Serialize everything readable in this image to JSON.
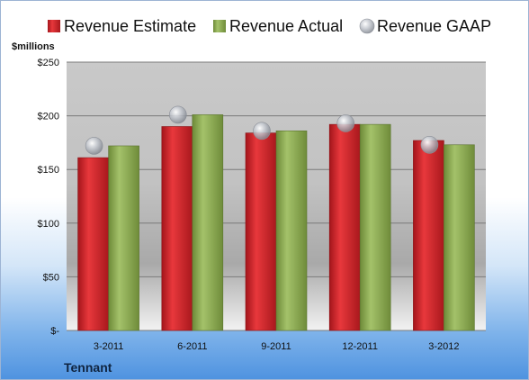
{
  "chart_data": {
    "type": "bar",
    "company": "Tennant",
    "unit_label": "$millions",
    "categories": [
      "3-2011",
      "6-2011",
      "9-2011",
      "12-2011",
      "3-2012"
    ],
    "series": [
      {
        "name": "Revenue Estimate",
        "values": [
          161,
          190,
          184,
          192,
          177
        ],
        "color": "#cc2024"
      },
      {
        "name": "Revenue Actual",
        "values": [
          172,
          201,
          186,
          192,
          173
        ],
        "color": "#8aa84f"
      }
    ],
    "markers": {
      "name": "Revenue GAAP",
      "values": [
        172,
        201,
        186,
        193,
        173
      ],
      "color": "#b8bcc4"
    },
    "y_ticks": [
      {
        "value": 0,
        "label": "$-"
      },
      {
        "value": 50,
        "label": "$50"
      },
      {
        "value": 100,
        "label": "$100"
      },
      {
        "value": 150,
        "label": "$150"
      },
      {
        "value": 200,
        "label": "$200"
      },
      {
        "value": 250,
        "label": "$250"
      }
    ],
    "ylim": [
      0,
      250
    ],
    "grid": true,
    "legend_position": "top"
  }
}
